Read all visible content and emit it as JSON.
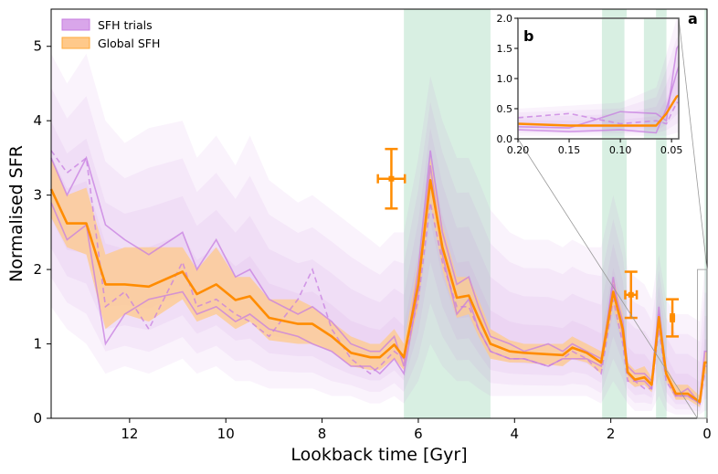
{
  "chart_data": [
    {
      "type": "line",
      "panel_label": "a",
      "xlabel": "Lookback time [Gyr]",
      "ylabel": "Normalised SFR",
      "xlim": [
        13.63,
        0
      ],
      "ylim": [
        0,
        5.5
      ],
      "x_inverted": true,
      "xticks": [
        12,
        10,
        8,
        6,
        4,
        2,
        0
      ],
      "yticks": [
        0,
        1,
        2,
        3,
        4,
        5
      ],
      "grid": false,
      "legend_position": "top-left",
      "legend": [
        {
          "label": "SFH trials",
          "color": "#c77de0"
        },
        {
          "label": "Global SFH",
          "color": "#ffa93a"
        }
      ],
      "colors": {
        "global": "#ff8c00",
        "trials": "#c77de0",
        "band": "#ffc98a",
        "shade": "#a8dcbf"
      },
      "shaded_intervals": [
        [
          6.3,
          4.5
        ],
        [
          2.18,
          1.67
        ],
        [
          1.06,
          0.84
        ],
        [
          0.05,
          0.0
        ]
      ],
      "x": [
        13.63,
        13.3,
        12.9,
        12.5,
        12.1,
        11.6,
        10.9,
        10.6,
        10.2,
        9.8,
        9.5,
        9.1,
        8.5,
        8.2,
        7.8,
        7.4,
        7.0,
        6.8,
        6.5,
        6.3,
        6.0,
        5.75,
        5.5,
        5.2,
        4.95,
        4.75,
        4.5,
        4.1,
        3.8,
        3.3,
        3.0,
        2.8,
        2.5,
        2.2,
        1.95,
        1.75,
        1.65,
        1.5,
        1.3,
        1.15,
        1.0,
        0.85,
        0.65,
        0.4,
        0.15,
        0.05,
        0.0
      ],
      "global_sfh": [
        3.08,
        2.62,
        2.62,
        1.8,
        1.8,
        1.77,
        1.97,
        1.67,
        1.8,
        1.59,
        1.64,
        1.35,
        1.27,
        1.27,
        1.1,
        0.88,
        0.82,
        0.82,
        0.99,
        0.82,
        1.8,
        3.2,
        2.3,
        1.62,
        1.65,
        1.35,
        1.0,
        0.9,
        0.88,
        0.86,
        0.85,
        0.95,
        0.88,
        0.75,
        1.7,
        1.2,
        0.62,
        0.52,
        0.55,
        0.45,
        1.36,
        0.6,
        0.33,
        0.33,
        0.22,
        0.75,
        0.75
      ],
      "global_upper": [
        3.5,
        3.0,
        3.1,
        2.2,
        2.3,
        2.3,
        2.3,
        2.0,
        2.3,
        1.9,
        1.9,
        1.6,
        1.6,
        1.5,
        1.3,
        1.1,
        1.0,
        1.0,
        1.2,
        1.0,
        2.1,
        3.5,
        2.6,
        1.9,
        1.9,
        1.6,
        1.2,
        1.05,
        1.0,
        1.0,
        1.0,
        1.1,
        1.0,
        0.9,
        1.9,
        1.4,
        0.75,
        0.65,
        0.7,
        0.55,
        1.5,
        0.7,
        0.45,
        0.45,
        0.3,
        0.9,
        0.9
      ],
      "global_lower": [
        2.7,
        2.3,
        2.2,
        1.2,
        1.4,
        1.3,
        1.6,
        1.3,
        1.4,
        1.2,
        1.3,
        1.05,
        1.0,
        1.0,
        0.9,
        0.7,
        0.65,
        0.65,
        0.8,
        0.65,
        1.5,
        2.9,
        2.0,
        1.35,
        1.4,
        1.1,
        0.8,
        0.75,
        0.75,
        0.72,
        0.7,
        0.8,
        0.75,
        0.6,
        1.5,
        1.0,
        0.5,
        0.42,
        0.45,
        0.35,
        1.2,
        0.5,
        0.25,
        0.25,
        0.15,
        0.6,
        0.6
      ],
      "trials_upper": [
        4.9,
        4.5,
        4.9,
        4.0,
        3.7,
        3.9,
        4.0,
        3.5,
        3.8,
        3.4,
        3.8,
        3.2,
        2.9,
        3.0,
        2.8,
        2.6,
        2.4,
        2.3,
        2.5,
        2.5,
        3.5,
        4.6,
        4.0,
        3.5,
        3.5,
        3.2,
        2.8,
        2.5,
        2.4,
        2.4,
        2.3,
        2.4,
        2.3,
        2.3,
        3.0,
        2.5,
        2.0,
        1.9,
        1.8,
        1.6,
        2.2,
        1.6,
        1.4,
        1.4,
        1.3,
        2.0,
        2.0
      ],
      "trials_lower": [
        1.5,
        1.2,
        1.0,
        0.6,
        0.7,
        0.6,
        0.8,
        0.6,
        0.7,
        0.5,
        0.5,
        0.4,
        0.4,
        0.4,
        0.3,
        0.3,
        0.2,
        0.2,
        0.3,
        0.2,
        0.5,
        1.0,
        0.7,
        0.5,
        0.5,
        0.4,
        0.3,
        0.3,
        0.3,
        0.3,
        0.3,
        0.3,
        0.3,
        0.2,
        0.5,
        0.3,
        0.2,
        0.1,
        0.1,
        0.1,
        0.3,
        0.1,
        0.05,
        0.05,
        0.05,
        0.1,
        0.1
      ],
      "trials": [
        {
          "style": "solid",
          "values": [
            3.5,
            3.0,
            3.5,
            2.6,
            2.4,
            2.2,
            2.5,
            2.0,
            2.4,
            1.9,
            2.0,
            1.6,
            1.4,
            1.5,
            1.3,
            1.0,
            0.9,
            0.9,
            1.1,
            0.7,
            2.0,
            3.6,
            2.5,
            1.8,
            1.9,
            1.5,
            1.1,
            1.0,
            0.9,
            1.0,
            0.9,
            1.0,
            0.9,
            0.8,
            1.8,
            1.3,
            0.7,
            0.6,
            0.6,
            0.5,
            1.5,
            0.6,
            0.3,
            0.4,
            0.2,
            0.9,
            0.9
          ]
        },
        {
          "style": "dashed",
          "values": [
            3.6,
            3.3,
            3.5,
            1.5,
            1.7,
            1.2,
            2.1,
            1.5,
            1.6,
            1.4,
            1.3,
            1.1,
            1.6,
            2.0,
            1.2,
            0.8,
            0.6,
            0.7,
            0.9,
            0.8,
            1.6,
            2.9,
            2.1,
            1.5,
            1.5,
            1.2,
            0.9,
            0.8,
            0.8,
            0.7,
            0.8,
            0.9,
            0.8,
            0.6,
            1.6,
            1.0,
            0.5,
            0.5,
            0.4,
            0.4,
            1.2,
            0.5,
            0.3,
            0.3,
            0.2,
            0.6,
            0.6
          ]
        },
        {
          "style": "solid",
          "values": [
            2.9,
            2.4,
            2.6,
            1.0,
            1.4,
            1.6,
            1.7,
            1.4,
            1.5,
            1.3,
            1.4,
            1.2,
            1.1,
            1.0,
            0.9,
            0.7,
            0.7,
            0.6,
            0.8,
            0.6,
            1.7,
            3.4,
            2.2,
            1.4,
            1.6,
            1.2,
            0.9,
            0.8,
            0.8,
            0.7,
            0.8,
            0.8,
            0.8,
            0.7,
            1.9,
            1.1,
            0.6,
            0.5,
            0.5,
            0.4,
            1.4,
            0.6,
            0.3,
            0.3,
            0.2,
            0.7,
            0.7
          ]
        }
      ],
      "error_points": [
        {
          "x": 6.56,
          "y": 3.22,
          "xerr": 0.28,
          "yerr": 0.4
        },
        {
          "x": 1.58,
          "y": 1.66,
          "xerr": 0.12,
          "yerr": 0.31
        },
        {
          "x": 0.72,
          "y": 1.35,
          "xerr": 0.03,
          "yerr": 0.25
        }
      ]
    },
    {
      "type": "line",
      "panel_label": "b",
      "xlim": [
        0.2,
        0.043
      ],
      "ylim": [
        0,
        2.0
      ],
      "xticks": [
        "0.20",
        "0.15",
        "0.10",
        "0.05"
      ],
      "yticks": [
        "0.0",
        "0.5",
        "1.0",
        "1.5",
        "2.0"
      ],
      "shaded_intervals": [
        [
          0.118,
          0.096
        ],
        [
          0.077,
          0.055
        ]
      ],
      "x": [
        0.2,
        0.15,
        0.1,
        0.065,
        0.055,
        0.045,
        0.043
      ],
      "global_sfh": [
        0.25,
        0.22,
        0.22,
        0.22,
        0.42,
        0.7,
        0.72
      ],
      "trials": [
        {
          "style": "solid",
          "values": [
            0.2,
            0.18,
            0.45,
            0.42,
            0.3,
            1.5,
            1.55
          ]
        },
        {
          "style": "dashed",
          "values": [
            0.35,
            0.42,
            0.25,
            0.3,
            0.25,
            0.6,
            0.6
          ]
        },
        {
          "style": "solid",
          "values": [
            0.15,
            0.12,
            0.15,
            0.1,
            0.5,
            1.1,
            1.2
          ]
        }
      ],
      "trials_upper": [
        0.5,
        0.55,
        0.6,
        0.85,
        1.4,
        2.0,
        2.0
      ],
      "trials_lower": [
        0.05,
        0.05,
        0.05,
        0.05,
        0.05,
        0.1,
        0.1
      ]
    }
  ]
}
